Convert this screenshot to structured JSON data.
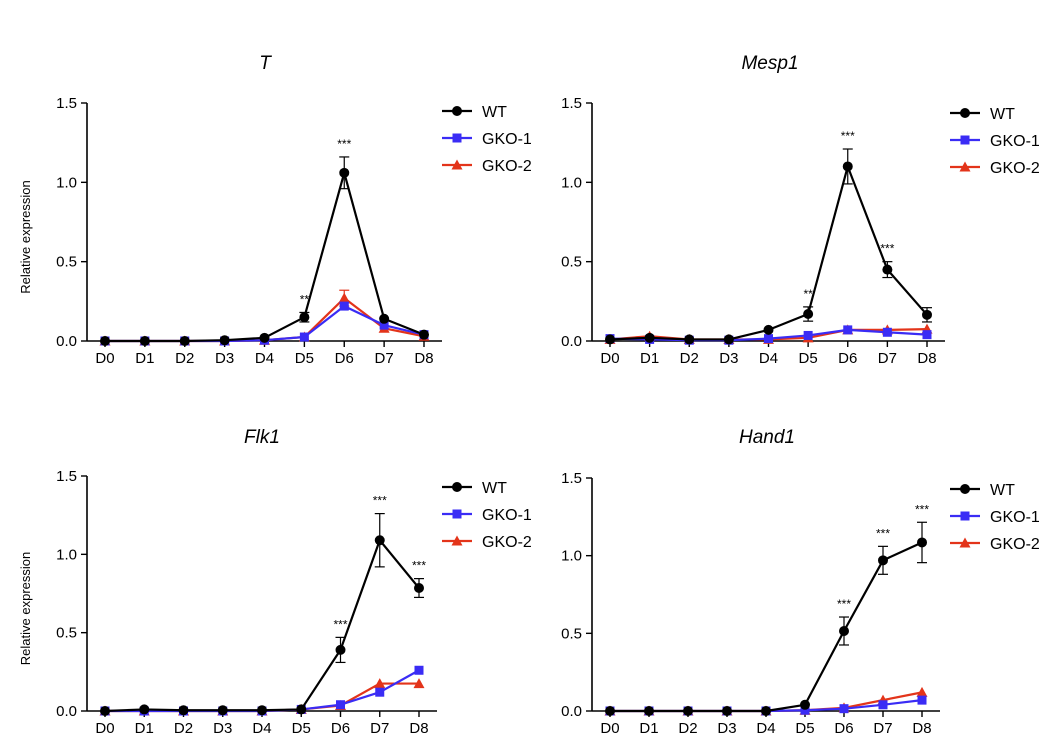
{
  "chart_data": [
    {
      "type": "line",
      "title": "T",
      "xlabel": "",
      "ylabel": "Relative expression",
      "categories": [
        "D0",
        "D1",
        "D2",
        "D3",
        "D4",
        "D5",
        "D6",
        "D7",
        "D8"
      ],
      "ylim": [
        0,
        1.5
      ],
      "yticks": [
        "0.0",
        "0.5",
        "1.0",
        "1.5"
      ],
      "series": [
        {
          "name": "WT",
          "color": "#000000",
          "marker": "circle",
          "values": [
            0.0,
            0.0,
            0.0,
            0.005,
            0.02,
            0.15,
            1.06,
            0.14,
            0.04
          ],
          "errors": [
            0,
            0,
            0,
            0,
            0,
            0.03,
            0.1,
            0,
            0
          ]
        },
        {
          "name": "GKO-1",
          "color": "#3a2cf5",
          "marker": "square",
          "values": [
            0.0,
            0.0,
            0.0,
            0.0,
            0.005,
            0.025,
            0.22,
            0.1,
            0.04
          ],
          "errors": [
            0,
            0,
            0,
            0,
            0,
            0,
            0.02,
            0,
            0
          ]
        },
        {
          "name": "GKO-2",
          "color": "#e3341a",
          "marker": "triangle",
          "values": [
            0.0,
            0.0,
            0.0,
            0.0,
            0.005,
            0.025,
            0.27,
            0.08,
            0.03
          ],
          "errors": [
            0,
            0,
            0,
            0,
            0,
            0,
            0.05,
            0,
            0
          ]
        }
      ],
      "annotations": [
        {
          "x": "D5",
          "text": "**"
        },
        {
          "x": "D6",
          "text": "***"
        }
      ]
    },
    {
      "type": "line",
      "title": "Mesp1",
      "xlabel": "",
      "ylabel": "",
      "categories": [
        "D0",
        "D1",
        "D2",
        "D3",
        "D4",
        "D5",
        "D6",
        "D7",
        "D8"
      ],
      "ylim": [
        0,
        1.5
      ],
      "yticks": [
        "0.0",
        "0.5",
        "1.0",
        "1.5"
      ],
      "series": [
        {
          "name": "WT",
          "color": "#000000",
          "marker": "circle",
          "values": [
            0.01,
            0.02,
            0.01,
            0.01,
            0.07,
            0.17,
            1.1,
            0.45,
            0.165
          ],
          "errors": [
            0,
            0,
            0,
            0,
            0,
            0.045,
            0.11,
            0.05,
            0.045
          ]
        },
        {
          "name": "GKO-1",
          "color": "#3a2cf5",
          "marker": "square",
          "values": [
            0.015,
            0.01,
            0.005,
            0.005,
            0.015,
            0.035,
            0.07,
            0.055,
            0.04
          ],
          "errors": [
            0,
            0,
            0,
            0,
            0,
            0,
            0,
            0,
            0
          ]
        },
        {
          "name": "GKO-2",
          "color": "#e3341a",
          "marker": "triangle",
          "values": [
            0.01,
            0.03,
            0.01,
            0.01,
            0.01,
            0.02,
            0.07,
            0.07,
            0.075
          ],
          "errors": [
            0,
            0,
            0,
            0,
            0,
            0,
            0,
            0,
            0
          ]
        }
      ],
      "annotations": [
        {
          "x": "D5",
          "text": "**"
        },
        {
          "x": "D6",
          "text": "***"
        },
        {
          "x": "D7",
          "text": "***"
        }
      ]
    },
    {
      "type": "line",
      "title": "Flk1",
      "xlabel": "",
      "ylabel": "Relative expression",
      "categories": [
        "D0",
        "D1",
        "D2",
        "D3",
        "D4",
        "D5",
        "D6",
        "D7",
        "D8"
      ],
      "ylim": [
        0,
        1.5
      ],
      "yticks": [
        "0.0",
        "0.5",
        "1.0",
        "1.5"
      ],
      "series": [
        {
          "name": "WT",
          "color": "#000000",
          "marker": "circle",
          "values": [
            0.0,
            0.01,
            0.005,
            0.005,
            0.005,
            0.01,
            0.39,
            1.09,
            0.785
          ],
          "errors": [
            0,
            0,
            0,
            0,
            0,
            0,
            0.08,
            0.17,
            0.06
          ]
        },
        {
          "name": "GKO-1",
          "color": "#3a2cf5",
          "marker": "square",
          "values": [
            0.0,
            0.0,
            0.0,
            0.0,
            0.0,
            0.01,
            0.04,
            0.12,
            0.26
          ],
          "errors": [
            0,
            0,
            0,
            0,
            0,
            0,
            0,
            0,
            0
          ]
        },
        {
          "name": "GKO-2",
          "color": "#e3341a",
          "marker": "triangle",
          "values": [
            0.0,
            0.0,
            0.0,
            0.0,
            0.0,
            0.01,
            0.035,
            0.175,
            0.175
          ],
          "errors": [
            0,
            0,
            0,
            0,
            0,
            0,
            0,
            0,
            0
          ]
        }
      ],
      "annotations": [
        {
          "x": "D6",
          "text": "***"
        },
        {
          "x": "D7",
          "text": "***"
        },
        {
          "x": "D8",
          "text": "***"
        }
      ]
    },
    {
      "type": "line",
      "title": "Hand1",
      "xlabel": "",
      "ylabel": "",
      "categories": [
        "D0",
        "D1",
        "D2",
        "D3",
        "D4",
        "D5",
        "D6",
        "D7",
        "D8"
      ],
      "ylim": [
        0,
        1.5
      ],
      "yticks": [
        "0.0",
        "0.5",
        "1.0",
        "1.5"
      ],
      "series": [
        {
          "name": "WT",
          "color": "#000000",
          "marker": "circle",
          "values": [
            0.0,
            0.0,
            0.0,
            0.0,
            0.0,
            0.04,
            0.515,
            0.97,
            1.085
          ],
          "errors": [
            0,
            0,
            0,
            0,
            0,
            0,
            0.09,
            0.09,
            0.13
          ]
        },
        {
          "name": "GKO-1",
          "color": "#3a2cf5",
          "marker": "square",
          "values": [
            0.0,
            0.0,
            0.0,
            0.0,
            0.0,
            0.005,
            0.015,
            0.04,
            0.07
          ],
          "errors": [
            0,
            0,
            0,
            0,
            0,
            0,
            0,
            0,
            0
          ]
        },
        {
          "name": "GKO-2",
          "color": "#e3341a",
          "marker": "triangle",
          "values": [
            0.0,
            0.0,
            0.0,
            0.0,
            0.0,
            0.005,
            0.02,
            0.07,
            0.12
          ],
          "errors": [
            0,
            0,
            0,
            0,
            0,
            0,
            0,
            0,
            0
          ]
        }
      ],
      "annotations": [
        {
          "x": "D6",
          "text": "***"
        },
        {
          "x": "D7",
          "text": "***"
        },
        {
          "x": "D8",
          "text": "***"
        }
      ]
    }
  ]
}
